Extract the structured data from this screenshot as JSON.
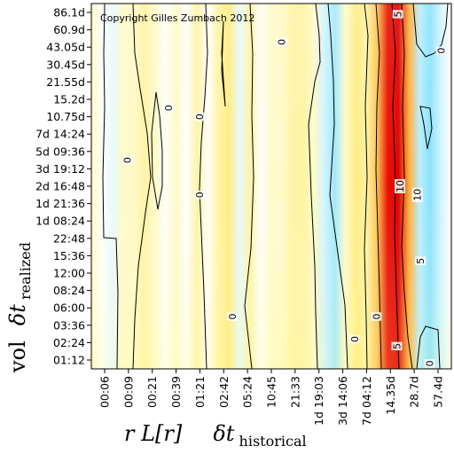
{
  "chart_data": {
    "type": "heatmap",
    "copyright": "Copyright Gilles Zumbach 2012",
    "x_axis": {
      "prefix": "r L[r]",
      "symbol": "δt",
      "subscript": "historical",
      "ticks": [
        "00:06",
        "00:09",
        "00:21",
        "00:39",
        "01:21",
        "02:42",
        "05:24",
        "10:45",
        "21:33",
        "1d 19:03",
        "3d 14:06",
        "7d 04:12",
        "14.35d",
        "28.7d",
        "57.4d"
      ]
    },
    "y_axis": {
      "prefix": "vol",
      "symbol": "δt",
      "subscript": "realized",
      "ticks": [
        "86.1d",
        "60.9d",
        "43.05d",
        "30.45d",
        "21.55d",
        "15.2d",
        "10.75d",
        "7d 14:24",
        "5d 09:36",
        "3d 19:12",
        "2d 16:48",
        "1d 21:36",
        "1d 08:24",
        "22:48",
        "15:36",
        "12:00",
        "08:24",
        "06:00",
        "03:36",
        "02:24",
        "01:12"
      ]
    },
    "column_values": [
      1,
      0,
      -1,
      1,
      1,
      2,
      1,
      0,
      1,
      0,
      2,
      0,
      2,
      3,
      -1,
      2,
      0,
      1,
      1,
      2,
      2,
      1,
      -2,
      -4,
      1,
      3,
      2,
      5,
      12,
      13,
      6,
      -3,
      -5,
      -2,
      0
    ],
    "contour_labels": [
      {
        "text": "0",
        "col": 3,
        "row": 8.5
      },
      {
        "text": "0",
        "col": 7,
        "row": 5.5
      },
      {
        "text": "0",
        "col": 10,
        "row": 6
      },
      {
        "text": "0",
        "col": 10,
        "row": 10.5
      },
      {
        "text": "0",
        "col": 18,
        "row": 1.7
      },
      {
        "text": "0",
        "col": 13.2,
        "row": 17.5
      },
      {
        "text": "0",
        "col": 25.1,
        "row": 18.8
      },
      {
        "text": "0",
        "col": 27.2,
        "row": 17.5
      },
      {
        "text": "0",
        "col": 33.5,
        "row": 2.2
      },
      {
        "text": "0",
        "col": 32.4,
        "row": 20.2
      },
      {
        "text": "5",
        "col": 29.3,
        "row": 0.1
      },
      {
        "text": "5",
        "col": 29.2,
        "row": 19.2
      },
      {
        "text": "5",
        "col": 31.5,
        "row": 14.3
      },
      {
        "text": "10",
        "col": 29.5,
        "row": 10
      },
      {
        "text": "10",
        "col": 31.2,
        "row": 10.5
      }
    ]
  }
}
